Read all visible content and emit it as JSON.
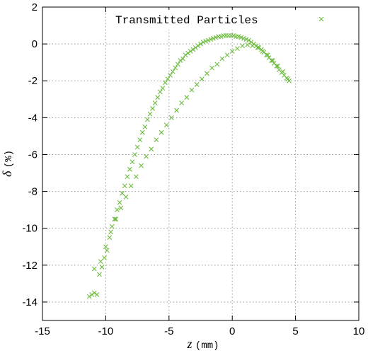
{
  "chart_data": {
    "type": "scatter",
    "title": "",
    "xlabel": "z",
    "xlabel_unit": "(mm)",
    "ylabel": "δ",
    "ylabel_unit": "(%)",
    "xlim": [
      -15,
      10
    ],
    "ylim": [
      -15,
      2
    ],
    "xticks": [
      -15,
      -10,
      -5,
      0,
      5,
      10
    ],
    "yticks": [
      -14,
      -12,
      -10,
      -8,
      -6,
      -4,
      -2,
      0,
      2
    ],
    "grid": true,
    "legend_position": "top-right",
    "series": [
      {
        "name": "Transmitted Particles",
        "marker": "x",
        "color": "#6dbb3f",
        "x": [
          -11.3,
          -11.1,
          -10.9,
          -10.7,
          -10.5,
          -10.3,
          -10.1,
          -9.9,
          -9.7,
          -9.5,
          -9.3,
          -9.1,
          -8.9,
          -8.7,
          -8.5,
          -8.3,
          -8.1,
          -7.9,
          -7.7,
          -7.5,
          -7.3,
          -7.1,
          -6.9,
          -6.7,
          -6.5,
          -6.3,
          -6.1,
          -5.9,
          -5.7,
          -5.5,
          -5.3,
          -5.1,
          -4.9,
          -4.7,
          -4.5,
          -4.3,
          -4.1,
          -3.9,
          -3.7,
          -3.5,
          -3.3,
          -3.1,
          -2.9,
          -2.7,
          -2.5,
          -2.3,
          -2.1,
          -1.9,
          -1.7,
          -1.5,
          -1.3,
          -1.1,
          -0.9,
          -0.7,
          -0.5,
          -0.3,
          -0.1,
          0.1,
          0.3,
          0.5,
          0.7,
          0.9,
          1.1,
          1.3,
          1.5,
          1.7,
          1.9,
          2.1,
          2.3,
          2.5,
          2.7,
          2.9,
          3.1,
          3.3,
          3.5,
          3.7,
          3.9,
          4.1,
          4.3,
          4.5
        ],
        "y": [
          -13.7,
          -13.6,
          -13.5,
          -13.6,
          -12.5,
          -12.1,
          -11.6,
          -11.2,
          -10.5,
          -9.9,
          -9.5,
          -9.0,
          -8.6,
          -8.1,
          -7.7,
          -7.2,
          -6.8,
          -6.4,
          -6.0,
          -5.6,
          -5.2,
          -4.8,
          -4.5,
          -4.1,
          -3.8,
          -3.5,
          -3.2,
          -2.9,
          -2.6,
          -2.4,
          -2.1,
          -1.9,
          -1.7,
          -1.5,
          -1.3,
          -1.1,
          -0.9,
          -0.8,
          -0.6,
          -0.5,
          -0.4,
          -0.3,
          -0.2,
          -0.1,
          0.0,
          0.1,
          0.15,
          0.2,
          0.25,
          0.3,
          0.35,
          0.4,
          0.4,
          0.45,
          0.45,
          0.45,
          0.45,
          0.45,
          0.4,
          0.4,
          0.35,
          0.3,
          0.25,
          0.2,
          0.1,
          0.0,
          -0.1,
          -0.2,
          -0.3,
          -0.45,
          -0.6,
          -0.75,
          -0.9,
          -1.05,
          -1.2,
          -1.4,
          -1.55,
          -1.7,
          -1.85,
          -2.0
        ]
      },
      {
        "name": "",
        "marker": "x",
        "color": "#6dbb3f",
        "x": [
          -10.9,
          -10.4,
          -10.0,
          -9.6,
          -9.2,
          -8.8,
          -8.4,
          -8.0,
          -7.6,
          -7.2,
          -6.8,
          -6.4,
          -6.0,
          -5.6,
          -5.2,
          -4.8,
          -4.4,
          -4.0,
          -3.6,
          -3.2,
          -2.8,
          -2.4,
          -2.0,
          -1.6,
          -1.2,
          -0.8,
          -0.4,
          0.0,
          0.4,
          0.8,
          1.2,
          1.6,
          2.0,
          2.4,
          2.8,
          3.2,
          3.6,
          4.0,
          4.4
        ],
        "y": [
          -12.2,
          -11.8,
          -11.0,
          -10.2,
          -9.5,
          -8.9,
          -8.3,
          -7.7,
          -7.2,
          -6.6,
          -6.1,
          -5.7,
          -5.2,
          -4.8,
          -4.4,
          -4.0,
          -3.6,
          -3.2,
          -2.9,
          -2.5,
          -2.2,
          -1.9,
          -1.6,
          -1.3,
          -1.1,
          -0.8,
          -0.6,
          -0.4,
          -0.25,
          -0.1,
          -0.05,
          -0.1,
          -0.2,
          -0.4,
          -0.6,
          -0.9,
          -1.2,
          -1.5,
          -1.9
        ]
      }
    ]
  }
}
